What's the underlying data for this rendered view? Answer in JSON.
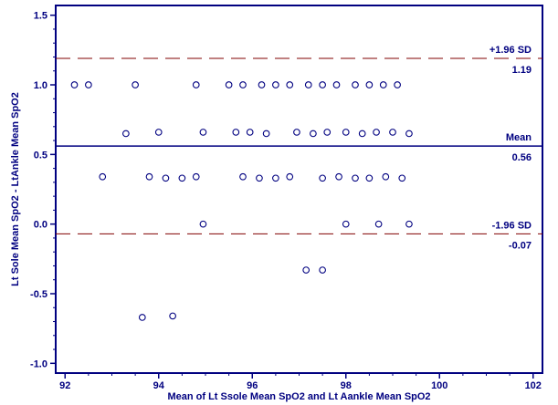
{
  "chart_data": {
    "type": "scatter",
    "title": "",
    "xlabel": "Mean of Lt Ssole Mean SpO2 and Lt Aankle Mean SpO2",
    "ylabel": "Lt Sole Mean SpO2 - LtAnkle Mean SpO2",
    "xlim": [
      91.8,
      102.2
    ],
    "ylim": [
      -1.07,
      1.57
    ],
    "xticks": [
      92,
      94,
      96,
      98,
      100,
      102
    ],
    "yticks": [
      -1.0,
      -0.5,
      0.0,
      0.5,
      1.0,
      1.5
    ],
    "xtick_labels": [
      "92",
      "94",
      "96",
      "98",
      "100",
      "102"
    ],
    "ytick_labels": [
      "-1.0",
      "-0.5",
      "0.0",
      "0.5",
      "1.0",
      "1.5"
    ],
    "grid": false,
    "reference_lines": [
      {
        "name": "+1.96 SD",
        "value": 1.19,
        "value_label": "1.19",
        "style": "dashed"
      },
      {
        "name": "Mean",
        "value": 0.56,
        "value_label": "0.56",
        "style": "solid"
      },
      {
        "name": "-1.96 SD",
        "value": -0.07,
        "value_label": "-0.07",
        "style": "dashed"
      }
    ],
    "points": [
      [
        92.2,
        1.0
      ],
      [
        92.5,
        1.0
      ],
      [
        93.5,
        1.0
      ],
      [
        94.8,
        1.0
      ],
      [
        95.5,
        1.0
      ],
      [
        95.8,
        1.0
      ],
      [
        96.2,
        1.0
      ],
      [
        96.5,
        1.0
      ],
      [
        96.8,
        1.0
      ],
      [
        97.2,
        1.0
      ],
      [
        97.5,
        1.0
      ],
      [
        97.8,
        1.0
      ],
      [
        98.2,
        1.0
      ],
      [
        98.5,
        1.0
      ],
      [
        98.8,
        1.0
      ],
      [
        99.1,
        1.0
      ],
      [
        93.3,
        0.65
      ],
      [
        94.0,
        0.66
      ],
      [
        94.95,
        0.66
      ],
      [
        95.65,
        0.66
      ],
      [
        95.95,
        0.66
      ],
      [
        96.3,
        0.65
      ],
      [
        96.95,
        0.66
      ],
      [
        97.3,
        0.65
      ],
      [
        97.6,
        0.66
      ],
      [
        98.0,
        0.66
      ],
      [
        98.35,
        0.65
      ],
      [
        98.65,
        0.66
      ],
      [
        99.0,
        0.66
      ],
      [
        99.35,
        0.65
      ],
      [
        92.8,
        0.34
      ],
      [
        93.8,
        0.34
      ],
      [
        94.15,
        0.33
      ],
      [
        94.5,
        0.33
      ],
      [
        94.8,
        0.34
      ],
      [
        95.8,
        0.34
      ],
      [
        96.15,
        0.33
      ],
      [
        96.5,
        0.33
      ],
      [
        96.8,
        0.34
      ],
      [
        97.5,
        0.33
      ],
      [
        97.85,
        0.34
      ],
      [
        98.2,
        0.33
      ],
      [
        98.5,
        0.33
      ],
      [
        98.85,
        0.34
      ],
      [
        99.2,
        0.33
      ],
      [
        94.95,
        0.0
      ],
      [
        98.0,
        0.0
      ],
      [
        98.7,
        0.0
      ],
      [
        99.35,
        0.0
      ],
      [
        97.15,
        -0.33
      ],
      [
        97.5,
        -0.33
      ],
      [
        93.65,
        -0.67
      ],
      [
        94.3,
        -0.66
      ]
    ],
    "colors": {
      "axis": "#000080",
      "text": "#000080",
      "reference_line": "#800000",
      "mean_line": "#000080",
      "marker": "#000080"
    }
  }
}
